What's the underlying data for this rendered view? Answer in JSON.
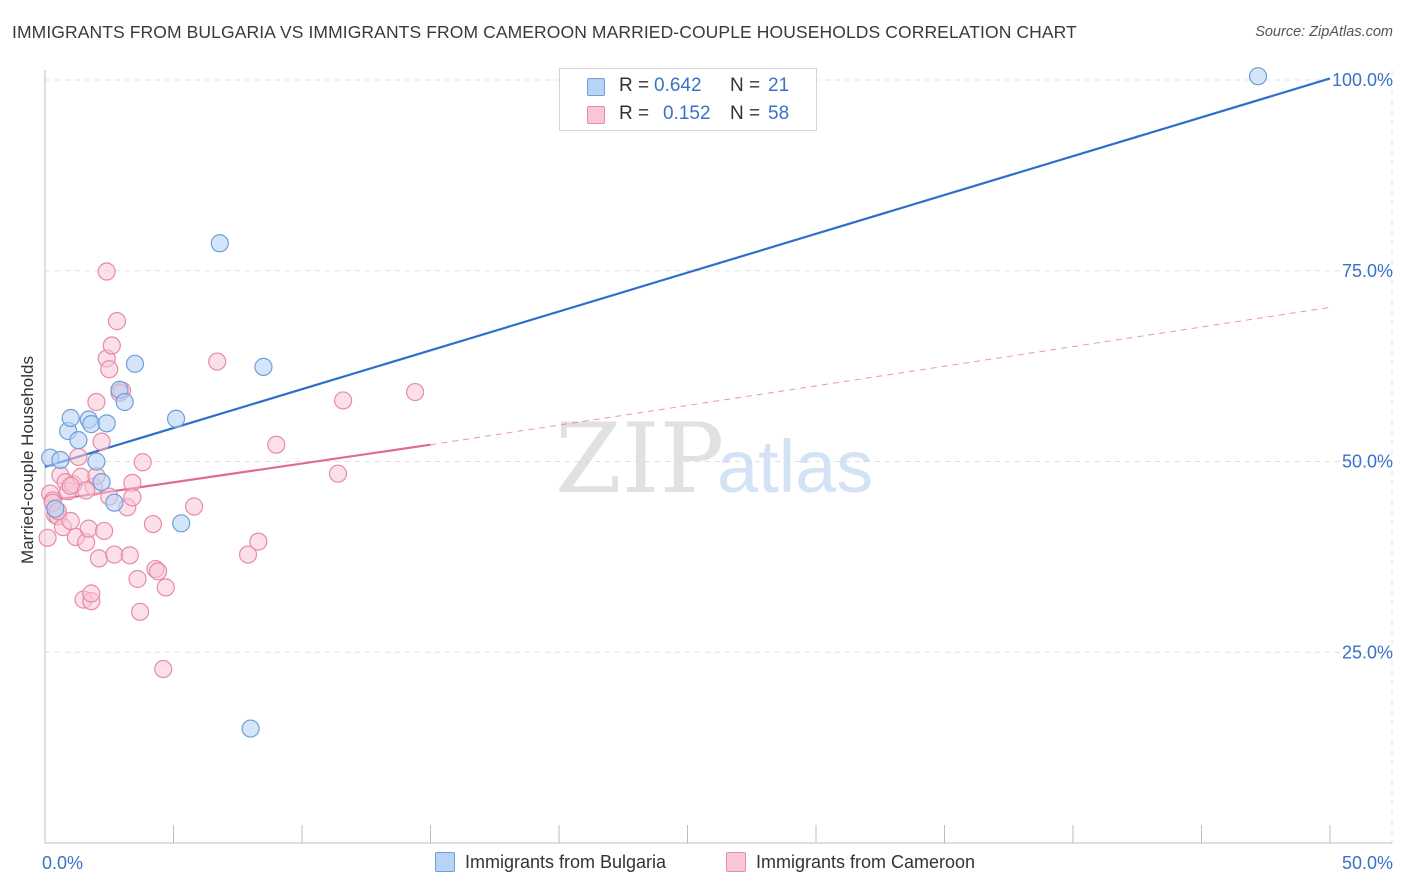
{
  "title": "IMMIGRANTS FROM BULGARIA VS IMMIGRANTS FROM CAMEROON MARRIED-COUPLE HOUSEHOLDS CORRELATION CHART",
  "source": "Source: ZipAtlas.com",
  "watermark": {
    "zip": "ZIP",
    "atlas": "atlas"
  },
  "legend": {
    "r_label": "R =",
    "n_label": "N =",
    "series": [
      {
        "name": "Immigrants from Bulgaria",
        "r": "0.642",
        "n": "21"
      },
      {
        "name": "Immigrants from Cameroon",
        "r": "0.152",
        "n": "58"
      }
    ]
  },
  "colors": {
    "bulgaria_fill": "#b8d4f5",
    "bulgaria_stroke": "#6f9fd8",
    "bulgaria_line": "#2f6fc9",
    "cameroon_fill": "#f8c6d6",
    "cameroon_stroke": "#e88aa8",
    "cameroon_line": "#e06a93",
    "axis_text": "#3a72c8",
    "grid": "#e0e0e0"
  },
  "chart_data": {
    "type": "scatter",
    "title": "IMMIGRANTS FROM BULGARIA VS IMMIGRANTS FROM CAMEROON MARRIED-COUPLE HOUSEHOLDS CORRELATION CHART",
    "xlabel": "",
    "ylabel": "Married-couple Households",
    "xlim": [
      0,
      50
    ],
    "ylim": [
      0,
      102
    ],
    "x_tick_labels": [
      "0.0%",
      "50.0%"
    ],
    "y_ticks": [
      25,
      50,
      75,
      100
    ],
    "y_tick_labels": [
      "25.0%",
      "50.0%",
      "75.0%",
      "100.0%"
    ],
    "grid": true,
    "series": [
      {
        "name": "Immigrants from Bulgaria",
        "points": [
          {
            "x": 0.2,
            "y": 50.5
          },
          {
            "x": 0.6,
            "y": 50.2
          },
          {
            "x": 0.9,
            "y": 54.0
          },
          {
            "x": 1.0,
            "y": 55.7
          },
          {
            "x": 1.3,
            "y": 52.8
          },
          {
            "x": 1.7,
            "y": 55.5
          },
          {
            "x": 1.8,
            "y": 54.9
          },
          {
            "x": 2.0,
            "y": 50.0
          },
          {
            "x": 2.2,
            "y": 47.3
          },
          {
            "x": 2.4,
            "y": 55.0
          },
          {
            "x": 2.7,
            "y": 44.6
          },
          {
            "x": 2.9,
            "y": 59.4
          },
          {
            "x": 3.1,
            "y": 57.8
          },
          {
            "x": 3.5,
            "y": 62.8
          },
          {
            "x": 5.1,
            "y": 55.6
          },
          {
            "x": 5.3,
            "y": 41.9
          },
          {
            "x": 6.8,
            "y": 78.6
          },
          {
            "x": 8.0,
            "y": 15.0
          },
          {
            "x": 8.5,
            "y": 62.4
          },
          {
            "x": 0.4,
            "y": 43.8
          },
          {
            "x": 47.2,
            "y": 100.5
          }
        ],
        "trend": {
          "x0": 0,
          "y0": 49.3,
          "x1": 50,
          "y1": 100.2
        }
      },
      {
        "name": "Immigrants from Cameroon",
        "points": [
          {
            "x": 0.1,
            "y": 40.0
          },
          {
            "x": 0.2,
            "y": 45.8
          },
          {
            "x": 0.3,
            "y": 44.9
          },
          {
            "x": 0.4,
            "y": 43.0
          },
          {
            "x": 0.5,
            "y": 42.8
          },
          {
            "x": 0.6,
            "y": 48.2
          },
          {
            "x": 0.7,
            "y": 41.4
          },
          {
            "x": 0.8,
            "y": 47.3
          },
          {
            "x": 0.9,
            "y": 46.1
          },
          {
            "x": 1.0,
            "y": 42.2
          },
          {
            "x": 1.1,
            "y": 47.0
          },
          {
            "x": 1.2,
            "y": 40.1
          },
          {
            "x": 1.3,
            "y": 50.6
          },
          {
            "x": 1.4,
            "y": 48.0
          },
          {
            "x": 1.5,
            "y": 31.9
          },
          {
            "x": 1.6,
            "y": 39.4
          },
          {
            "x": 1.7,
            "y": 41.2
          },
          {
            "x": 1.8,
            "y": 31.7
          },
          {
            "x": 1.8,
            "y": 32.7
          },
          {
            "x": 1.9,
            "y": 46.7
          },
          {
            "x": 2.0,
            "y": 48.1
          },
          {
            "x": 2.0,
            "y": 57.8
          },
          {
            "x": 2.1,
            "y": 37.3
          },
          {
            "x": 2.2,
            "y": 52.6
          },
          {
            "x": 2.3,
            "y": 40.9
          },
          {
            "x": 2.4,
            "y": 63.5
          },
          {
            "x": 2.4,
            "y": 74.9
          },
          {
            "x": 2.5,
            "y": 45.4
          },
          {
            "x": 2.5,
            "y": 62.1
          },
          {
            "x": 2.6,
            "y": 65.2
          },
          {
            "x": 2.7,
            "y": 37.8
          },
          {
            "x": 2.8,
            "y": 68.4
          },
          {
            "x": 3.0,
            "y": 59.3
          },
          {
            "x": 3.2,
            "y": 44.0
          },
          {
            "x": 3.3,
            "y": 37.7
          },
          {
            "x": 3.4,
            "y": 47.2
          },
          {
            "x": 3.4,
            "y": 45.3
          },
          {
            "x": 3.6,
            "y": 34.6
          },
          {
            "x": 3.7,
            "y": 30.3
          },
          {
            "x": 3.8,
            "y": 49.9
          },
          {
            "x": 4.2,
            "y": 41.8
          },
          {
            "x": 4.3,
            "y": 35.9
          },
          {
            "x": 4.4,
            "y": 35.6
          },
          {
            "x": 4.6,
            "y": 22.8
          },
          {
            "x": 4.7,
            "y": 33.5
          },
          {
            "x": 5.8,
            "y": 44.1
          },
          {
            "x": 6.7,
            "y": 63.1
          },
          {
            "x": 7.9,
            "y": 37.8
          },
          {
            "x": 8.3,
            "y": 39.5
          },
          {
            "x": 9.0,
            "y": 52.2
          },
          {
            "x": 11.4,
            "y": 48.4
          },
          {
            "x": 11.6,
            "y": 58.0
          },
          {
            "x": 14.4,
            "y": 59.1
          },
          {
            "x": 0.3,
            "y": 44.6
          },
          {
            "x": 1.0,
            "y": 46.8
          },
          {
            "x": 0.5,
            "y": 43.5
          },
          {
            "x": 2.9,
            "y": 59.0
          },
          {
            "x": 1.6,
            "y": 46.2
          }
        ],
        "trend": {
          "x0": 0,
          "y0": 44.8,
          "x1": 15,
          "y1": 52.2
        },
        "trend_extended": {
          "x0": 15,
          "y0": 52.2,
          "x1": 50,
          "y1": 70.2
        }
      }
    ]
  }
}
